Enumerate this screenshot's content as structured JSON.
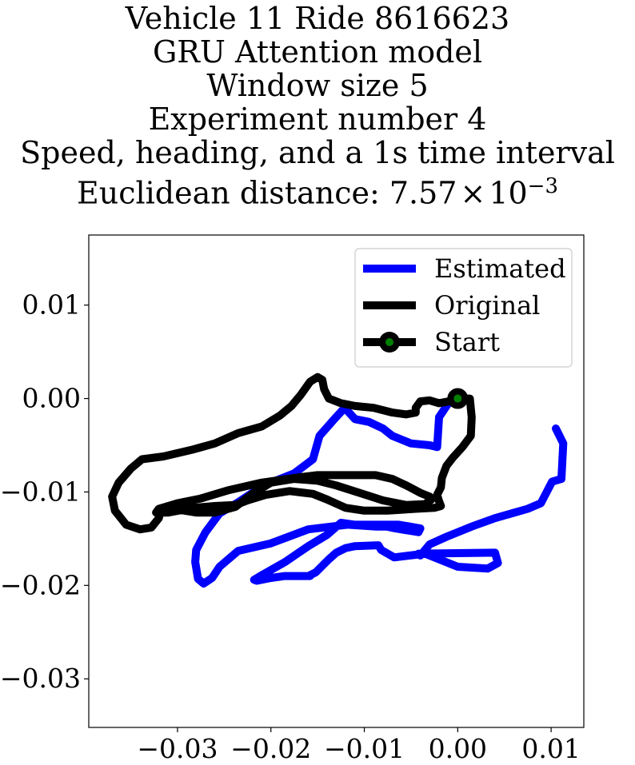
{
  "chart_data": {
    "type": "line",
    "title_lines": [
      "Vehicle 11 Ride 8616623",
      "GRU Attention model",
      "Window size 5",
      "Experiment number 4",
      "Speed, heading, and a 1s time interval"
    ],
    "title_metric_prefix": "Euclidean distance: ",
    "title_metric_mantissa": "7.57",
    "title_metric_times": "×",
    "title_metric_base": "10",
    "title_metric_exponent": "−3",
    "xlim": [
      -0.0395,
      0.0135
    ],
    "ylim": [
      -0.0352,
      0.0175
    ],
    "xticks": [
      -0.03,
      -0.02,
      -0.01,
      0.0,
      0.01
    ],
    "xtick_labels": [
      "−0.03",
      "−0.02",
      "−0.01",
      "0.00",
      "0.01"
    ],
    "yticks": [
      0.01,
      0.0,
      -0.01,
      -0.02,
      -0.03
    ],
    "ytick_labels": [
      "0.01",
      "0.00",
      "−0.01",
      "−0.02",
      "−0.03"
    ],
    "legend_position": "upper right",
    "series": [
      {
        "name": "Estimated",
        "color": "#0000ff",
        "points": [
          [
            0.0105,
            -0.0032
          ],
          [
            0.0113,
            -0.0048
          ],
          [
            0.0111,
            -0.0086
          ],
          [
            0.0101,
            -0.0089
          ],
          [
            0.0089,
            -0.0112
          ],
          [
            0.0075,
            -0.0118
          ],
          [
            0.004,
            -0.0128
          ],
          [
            0.0015,
            -0.0137
          ],
          [
            -0.0012,
            -0.0148
          ],
          [
            -0.003,
            -0.0156
          ],
          [
            -0.004,
            -0.0168
          ],
          [
            -0.0042,
            -0.0166
          ],
          [
            0.004,
            -0.0165
          ],
          [
            0.0043,
            -0.0176
          ],
          [
            0.0032,
            -0.0182
          ],
          [
            0.0,
            -0.018
          ],
          [
            -0.0035,
            -0.0166
          ],
          [
            -0.0068,
            -0.017
          ],
          [
            -0.0082,
            -0.0162
          ],
          [
            -0.0085,
            -0.0157
          ],
          [
            -0.011,
            -0.0158
          ],
          [
            -0.012,
            -0.016
          ],
          [
            -0.013,
            -0.0165
          ],
          [
            -0.0138,
            -0.0172
          ],
          [
            -0.0152,
            -0.0186
          ],
          [
            -0.0158,
            -0.0189
          ],
          [
            -0.0158,
            -0.019
          ],
          [
            -0.0185,
            -0.019
          ],
          [
            -0.02,
            -0.0192
          ],
          [
            -0.0215,
            -0.0195
          ],
          [
            -0.0218,
            -0.0194
          ],
          [
            -0.0208,
            -0.0188
          ],
          [
            -0.0185,
            -0.0175
          ],
          [
            -0.016,
            -0.0158
          ],
          [
            -0.014,
            -0.0146
          ],
          [
            -0.0125,
            -0.0133
          ],
          [
            -0.011,
            -0.0135
          ],
          [
            -0.007,
            -0.0135
          ],
          [
            -0.0063,
            -0.0135
          ],
          [
            -0.004,
            -0.0139
          ],
          [
            -0.0042,
            -0.0143
          ],
          [
            -0.0067,
            -0.0139
          ],
          [
            -0.0076,
            -0.0137
          ],
          [
            -0.0087,
            -0.0137
          ],
          [
            -0.0118,
            -0.0135
          ],
          [
            -0.016,
            -0.014
          ],
          [
            -0.02,
            -0.0155
          ],
          [
            -0.0235,
            -0.0163
          ],
          [
            -0.0255,
            -0.018
          ],
          [
            -0.0263,
            -0.0192
          ],
          [
            -0.0272,
            -0.0198
          ],
          [
            -0.0278,
            -0.0193
          ],
          [
            -0.0281,
            -0.0175
          ],
          [
            -0.028,
            -0.0162
          ],
          [
            -0.027,
            -0.0143
          ],
          [
            -0.0255,
            -0.0123
          ],
          [
            -0.0235,
            -0.0111
          ],
          [
            -0.022,
            -0.0101
          ],
          [
            -0.02,
            -0.009
          ],
          [
            -0.0175,
            -0.008
          ],
          [
            -0.0155,
            -0.0065
          ],
          [
            -0.0148,
            -0.004
          ],
          [
            -0.0133,
            -0.0023
          ],
          [
            -0.0121,
            -0.001
          ],
          [
            -0.011,
            -0.0022
          ],
          [
            -0.0095,
            -0.0025
          ],
          [
            -0.008,
            -0.0032
          ],
          [
            -0.007,
            -0.004
          ],
          [
            -0.005,
            -0.0048
          ],
          [
            -0.003,
            -0.005
          ],
          [
            -0.0022,
            -0.0052
          ],
          [
            -0.002,
            -0.002
          ],
          [
            -0.001,
            -0.0005
          ],
          [
            0.0,
            0.0
          ]
        ]
      },
      {
        "name": "Original",
        "color": "#000000",
        "points": [
          [
            0.0,
            0.0
          ],
          [
            0.0013,
            0.0
          ],
          [
            0.0015,
            -0.002
          ],
          [
            0.0014,
            -0.004
          ],
          [
            0.0005,
            -0.0052
          ],
          [
            -0.0005,
            -0.0063
          ],
          [
            -0.0012,
            -0.0072
          ],
          [
            -0.0017,
            -0.0085
          ],
          [
            -0.0018,
            -0.0095
          ],
          [
            -0.0022,
            -0.0103
          ],
          [
            -0.002,
            -0.011
          ],
          [
            -0.0018,
            -0.0115
          ],
          [
            -0.0025,
            -0.0117
          ],
          [
            -0.0045,
            -0.0118
          ],
          [
            -0.0075,
            -0.012
          ],
          [
            -0.01,
            -0.012
          ],
          [
            -0.012,
            -0.0117
          ],
          [
            -0.014,
            -0.0108
          ],
          [
            -0.0155,
            -0.0102
          ],
          [
            -0.018,
            -0.0099
          ],
          [
            -0.0205,
            -0.0103
          ],
          [
            -0.0225,
            -0.0109
          ],
          [
            -0.0238,
            -0.0114
          ],
          [
            -0.026,
            -0.0115
          ],
          [
            -0.0283,
            -0.0117
          ],
          [
            -0.031,
            -0.0122
          ],
          [
            -0.0323,
            -0.0122
          ],
          [
            -0.032,
            -0.0118
          ],
          [
            -0.03,
            -0.0112
          ],
          [
            -0.0275,
            -0.0107
          ],
          [
            -0.0245,
            -0.0098
          ],
          [
            -0.021,
            -0.009
          ],
          [
            -0.0175,
            -0.0085
          ],
          [
            -0.015,
            -0.0082
          ],
          [
            -0.012,
            -0.0082
          ],
          [
            -0.0088,
            -0.0082
          ],
          [
            -0.007,
            -0.0086
          ],
          [
            -0.0055,
            -0.0093
          ],
          [
            -0.004,
            -0.0101
          ],
          [
            -0.003,
            -0.0105
          ],
          [
            -0.0028,
            -0.0108
          ],
          [
            -0.0035,
            -0.0113
          ],
          [
            -0.0055,
            -0.0114
          ],
          [
            -0.008,
            -0.0109
          ],
          [
            -0.0105,
            -0.0101
          ],
          [
            -0.013,
            -0.0093
          ],
          [
            -0.015,
            -0.0088
          ],
          [
            -0.0175,
            -0.0086
          ],
          [
            -0.02,
            -0.009
          ],
          [
            -0.022,
            -0.0102
          ],
          [
            -0.0238,
            -0.0116
          ],
          [
            -0.026,
            -0.0122
          ],
          [
            -0.028,
            -0.0122
          ],
          [
            -0.0305,
            -0.0118
          ],
          [
            -0.0318,
            -0.012
          ],
          [
            -0.032,
            -0.0128
          ],
          [
            -0.0328,
            -0.0138
          ],
          [
            -0.034,
            -0.014
          ],
          [
            -0.0355,
            -0.0135
          ],
          [
            -0.0367,
            -0.012
          ],
          [
            -0.037,
            -0.0105
          ],
          [
            -0.0363,
            -0.009
          ],
          [
            -0.035,
            -0.0075
          ],
          [
            -0.0338,
            -0.0065
          ],
          [
            -0.0315,
            -0.0062
          ],
          [
            -0.0285,
            -0.0055
          ],
          [
            -0.026,
            -0.0048
          ],
          [
            -0.0235,
            -0.0037
          ],
          [
            -0.021,
            -0.003
          ],
          [
            -0.019,
            -0.0018
          ],
          [
            -0.0178,
            -0.0008
          ],
          [
            -0.0168,
            0.0004
          ],
          [
            -0.0158,
            0.0018
          ],
          [
            -0.015,
            0.0023
          ],
          [
            -0.0145,
            0.002
          ],
          [
            -0.0143,
            0.001
          ],
          [
            -0.0138,
            0.0
          ],
          [
            -0.0125,
            -0.0005
          ],
          [
            -0.011,
            -0.0008
          ],
          [
            -0.009,
            -0.001
          ],
          [
            -0.007,
            -0.0015
          ],
          [
            -0.0055,
            -0.0017
          ],
          [
            -0.0045,
            -0.0015
          ],
          [
            -0.0045,
            -0.001
          ],
          [
            -0.004,
            -0.0003
          ],
          [
            -0.003,
            -0.0002
          ],
          [
            -0.002,
            -0.0005
          ],
          [
            -0.001,
            -0.0003
          ],
          [
            0.0,
            0.0
          ]
        ]
      }
    ],
    "start": {
      "name": "Start",
      "point": [
        0.0,
        0.0
      ],
      "marker_face": "#008000",
      "marker_edge": "#000000"
    }
  }
}
